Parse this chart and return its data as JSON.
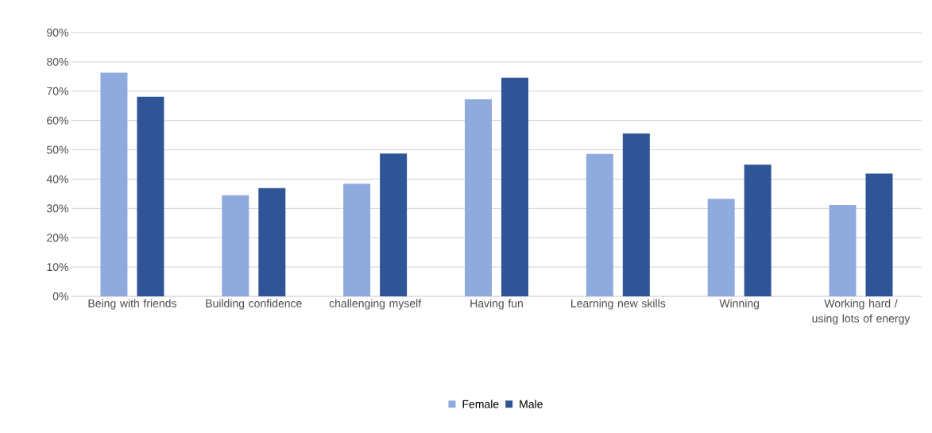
{
  "chart_data": {
    "type": "bar",
    "categories": [
      "Being with friends",
      "Building confidence",
      "challenging myself",
      "Having fun",
      "Learning new skills",
      "Winning",
      "Working hard / using lots of energy"
    ],
    "series": [
      {
        "name": "Female",
        "color": "#8faadc",
        "values": [
          76.3,
          34.5,
          38.4,
          67.2,
          48.6,
          33.3,
          31.2
        ]
      },
      {
        "name": "Male",
        "color": "#2f5597",
        "values": [
          68.1,
          36.9,
          48.7,
          74.6,
          55.6,
          44.9,
          41.9
        ]
      }
    ],
    "ylim": [
      0,
      90
    ],
    "yticks": [
      {
        "value": 0,
        "label": "0%"
      },
      {
        "value": 10,
        "label": "10%"
      },
      {
        "value": 20,
        "label": "20%"
      },
      {
        "value": 30,
        "label": "30%"
      },
      {
        "value": 40,
        "label": "40%"
      },
      {
        "value": 50,
        "label": "50%"
      },
      {
        "value": 60,
        "label": "60%"
      },
      {
        "value": 70,
        "label": "70%"
      },
      {
        "value": 80,
        "label": "80%"
      },
      {
        "value": 90,
        "label": "90%"
      }
    ],
    "grid": "y",
    "legend": "bottom"
  }
}
